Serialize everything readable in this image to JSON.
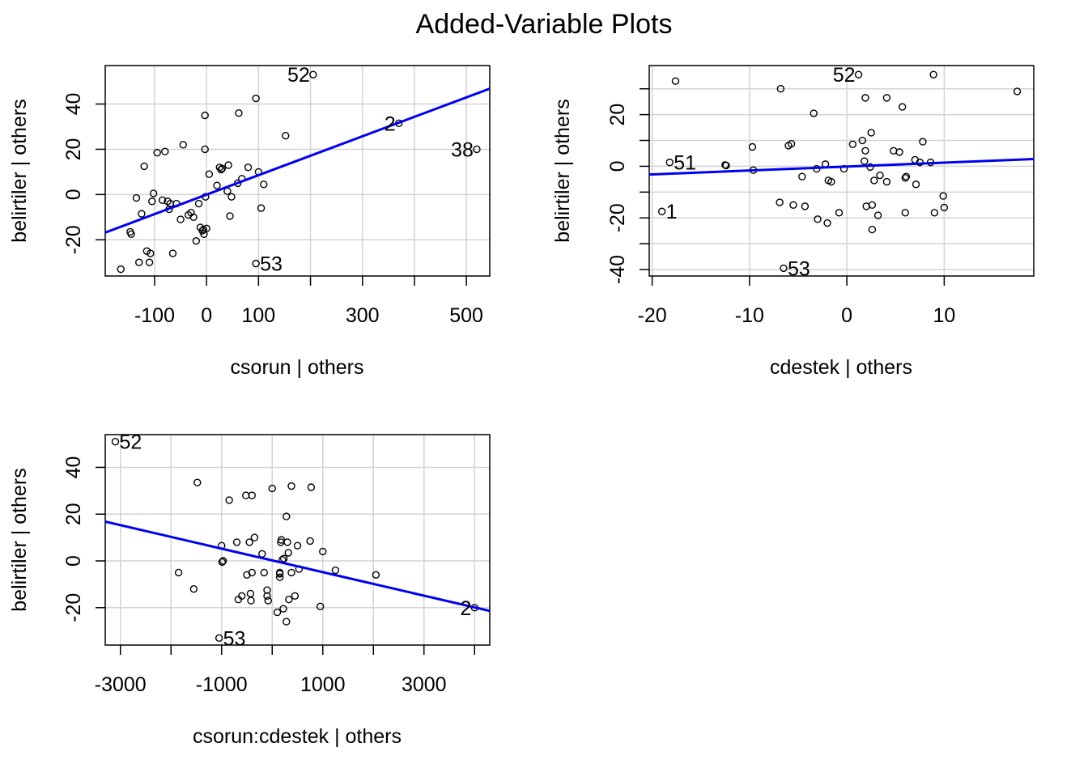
{
  "title": "Added-Variable Plots",
  "colors": {
    "fit_line": "#0000ee",
    "grid": "#d3d3d3",
    "points": "#000000",
    "frame": "#000000"
  },
  "chart_data": [
    {
      "type": "scatter",
      "xlabel": "csorun | others",
      "ylabel": "belirtiler  | others",
      "xlim": [
        -195,
        545
      ],
      "ylim": [
        -36,
        57
      ],
      "xticks": [
        -100,
        0,
        100,
        200,
        300,
        400,
        500
      ],
      "xtick_labels": [
        "-100",
        "0",
        "100",
        "",
        "300",
        "",
        "500"
      ],
      "yticks": [
        -20,
        0,
        20,
        40
      ],
      "yticks_labeled": [
        -20,
        0,
        20,
        40
      ],
      "fit": {
        "x": [
          -195,
          545
        ],
        "y": [
          -16.8,
          46.8
        ]
      },
      "points": [
        [
          -165,
          -33
        ],
        [
          -145,
          -17.5
        ],
        [
          -147,
          -16.5
        ],
        [
          -135,
          -1.5
        ],
        [
          -130,
          -30
        ],
        [
          -125,
          -8.5
        ],
        [
          -120,
          12.5
        ],
        [
          -115,
          -25
        ],
        [
          -110,
          -30
        ],
        [
          -108,
          -26
        ],
        [
          -102,
          0.5
        ],
        [
          -105,
          -3
        ],
        [
          -95,
          18.5
        ],
        [
          -85,
          -2.5
        ],
        [
          -75,
          -3
        ],
        [
          -72,
          -6.5
        ],
        [
          -70,
          -4
        ],
        [
          -65,
          -26
        ],
        [
          -58,
          -4
        ],
        [
          -50,
          -11
        ],
        [
          -45,
          22
        ],
        [
          -80,
          19
        ],
        [
          -35,
          -9
        ],
        [
          -30,
          -8
        ],
        [
          -25,
          -10
        ],
        [
          -20,
          -20.5
        ],
        [
          -15,
          -4
        ],
        [
          -12,
          -14.5
        ],
        [
          -8,
          -16
        ],
        [
          -5,
          -17.5
        ],
        [
          -6,
          -15.5
        ],
        [
          -3,
          20
        ],
        [
          -2,
          -1
        ],
        [
          -3,
          35
        ],
        [
          0,
          -15
        ],
        [
          5,
          9
        ],
        [
          20,
          4
        ],
        [
          25,
          12
        ],
        [
          28,
          11
        ],
        [
          30,
          11.5
        ],
        [
          40,
          1.5
        ],
        [
          42,
          13
        ],
        [
          45,
          -9.5
        ],
        [
          48,
          -1
        ],
        [
          60,
          5
        ],
        [
          62,
          36
        ],
        [
          68,
          7
        ],
        [
          80,
          12
        ],
        [
          95,
          42.5
        ],
        [
          100,
          10
        ],
        [
          105,
          -6
        ],
        [
          110,
          4.5
        ],
        [
          95,
          -30.5
        ],
        [
          152,
          26
        ],
        [
          205,
          53
        ],
        [
          370,
          31.5
        ],
        [
          520,
          20
        ]
      ],
      "labels": [
        {
          "x": 205,
          "y": 53,
          "text": "52",
          "side": "left"
        },
        {
          "x": 370,
          "y": 31.5,
          "text": "2",
          "side": "left"
        },
        {
          "x": 520,
          "y": 20,
          "text": "38",
          "side": "left"
        },
        {
          "x": 95,
          "y": -30.5,
          "text": "53",
          "side": "right"
        }
      ]
    },
    {
      "type": "scatter",
      "xlabel": "cdestek | others",
      "ylabel": "belirtiler  | others",
      "xlim": [
        -20.3,
        19.2
      ],
      "ylim": [
        -42.5,
        39
      ],
      "xticks": [
        -20,
        -10,
        0,
        10
      ],
      "xtick_labels": [
        "-20",
        "-10",
        "0",
        "10"
      ],
      "yticks": [
        -40,
        -30,
        -20,
        -10,
        0,
        10,
        20,
        30
      ],
      "yticks_labeled": [
        -40,
        -20,
        0,
        20
      ],
      "fit": {
        "x": [
          -20.3,
          19.2
        ],
        "y": [
          -3.2,
          2.8
        ]
      },
      "points": [
        [
          -19,
          -17.5
        ],
        [
          -18.2,
          1.5
        ],
        [
          -17.6,
          33
        ],
        [
          -12.5,
          0.5
        ],
        [
          -12.4,
          0.3
        ],
        [
          -9.7,
          7.5
        ],
        [
          -9.6,
          -1.5
        ],
        [
          -6.8,
          30
        ],
        [
          -6.9,
          -14
        ],
        [
          -6.5,
          -39.5
        ],
        [
          -6.0,
          8
        ],
        [
          -5.7,
          8.7
        ],
        [
          -5.5,
          -15
        ],
        [
          -4.6,
          -4
        ],
        [
          -4.3,
          -15.5
        ],
        [
          -3.4,
          20.5
        ],
        [
          -3.1,
          -1
        ],
        [
          -3.0,
          -20.5
        ],
        [
          -2.2,
          0.8
        ],
        [
          -2.0,
          -22
        ],
        [
          -1.9,
          -5.5
        ],
        [
          -1.6,
          -6
        ],
        [
          -0.8,
          -18
        ],
        [
          -0.3,
          -1
        ],
        [
          0.6,
          8.5
        ],
        [
          1.2,
          35.5
        ],
        [
          1.6,
          10
        ],
        [
          1.8,
          2
        ],
        [
          1.9,
          6
        ],
        [
          1.9,
          26.5
        ],
        [
          2.0,
          -15.5
        ],
        [
          2.4,
          -0.3
        ],
        [
          2.5,
          13
        ],
        [
          2.6,
          -15
        ],
        [
          2.6,
          -24.5
        ],
        [
          2.8,
          -5.5
        ],
        [
          3.2,
          -19
        ],
        [
          3.4,
          -3.5
        ],
        [
          4.1,
          26.5
        ],
        [
          4.1,
          -6
        ],
        [
          4.8,
          6
        ],
        [
          5.4,
          5.5
        ],
        [
          5.7,
          23
        ],
        [
          6.0,
          -18
        ],
        [
          6.0,
          -4.5
        ],
        [
          6.1,
          -4
        ],
        [
          7.0,
          2.5
        ],
        [
          7.1,
          -7
        ],
        [
          7.5,
          1.5
        ],
        [
          7.8,
          9.5
        ],
        [
          8.6,
          1.5
        ],
        [
          8.9,
          35.5
        ],
        [
          9.0,
          -18
        ],
        [
          9.9,
          -11.5
        ],
        [
          10.0,
          -16
        ],
        [
          17.5,
          29
        ]
      ],
      "labels": [
        {
          "x": 1.2,
          "y": 35.5,
          "text": "52",
          "side": "left"
        },
        {
          "x": -18.2,
          "y": 1.5,
          "text": "51",
          "side": "right"
        },
        {
          "x": -19,
          "y": -17.5,
          "text": "1",
          "side": "right"
        },
        {
          "x": -6.5,
          "y": -39.5,
          "text": "53",
          "side": "right"
        }
      ]
    },
    {
      "type": "scatter",
      "xlabel": "csorun:cdestek | others",
      "ylabel": "belirtiler  | others",
      "xlim": [
        -3300,
        4300
      ],
      "ylim": [
        -36,
        54
      ],
      "xticks": [
        -3000,
        -2000,
        -1000,
        0,
        1000,
        2000,
        3000,
        4000
      ],
      "xtick_labels": [
        "-3000",
        "",
        "-1000",
        "",
        "1000",
        "",
        "3000",
        ""
      ],
      "yticks": [
        -20,
        0,
        20,
        40
      ],
      "yticks_labeled": [
        -20,
        0,
        20,
        40
      ],
      "fit": {
        "x": [
          -3300,
          4300
        ],
        "y": [
          16.8,
          -21.4
        ]
      },
      "points": [
        [
          -3100,
          51
        ],
        [
          -1480,
          33.5
        ],
        [
          -1850,
          -5
        ],
        [
          -1550,
          -12
        ],
        [
          -1050,
          -33
        ],
        [
          -1000,
          6.5
        ],
        [
          -970,
          0
        ],
        [
          -990,
          -0.5
        ],
        [
          -850,
          26
        ],
        [
          -700,
          8
        ],
        [
          -670,
          -16.5
        ],
        [
          -600,
          -15
        ],
        [
          -520,
          28
        ],
        [
          -500,
          -6
        ],
        [
          -450,
          8
        ],
        [
          -430,
          -14
        ],
        [
          -420,
          -17
        ],
        [
          -400,
          28
        ],
        [
          -400,
          -5
        ],
        [
          -350,
          10
        ],
        [
          -200,
          3
        ],
        [
          -160,
          -5
        ],
        [
          -100,
          -12.5
        ],
        [
          -100,
          -15
        ],
        [
          -80,
          -17
        ],
        [
          0,
          31
        ],
        [
          100,
          -22
        ],
        [
          150,
          -5
        ],
        [
          150,
          -5.5
        ],
        [
          150,
          -7
        ],
        [
          170,
          8
        ],
        [
          180,
          9
        ],
        [
          200,
          0.5
        ],
        [
          220,
          -20.5
        ],
        [
          230,
          1
        ],
        [
          280,
          19
        ],
        [
          280,
          -26
        ],
        [
          300,
          8
        ],
        [
          320,
          3.5
        ],
        [
          330,
          -16.5
        ],
        [
          380,
          32
        ],
        [
          380,
          -5
        ],
        [
          450,
          -15
        ],
        [
          500,
          6.5
        ],
        [
          530,
          -3.5
        ],
        [
          750,
          8.5
        ],
        [
          770,
          31.5
        ],
        [
          950,
          -19.5
        ],
        [
          1000,
          4
        ],
        [
          1250,
          -4
        ],
        [
          2050,
          -6
        ],
        [
          4000,
          -20
        ]
      ],
      "labels": [
        {
          "x": -3100,
          "y": 51,
          "text": "52",
          "side": "right"
        },
        {
          "x": 4000,
          "y": -20,
          "text": "2",
          "side": "left"
        },
        {
          "x": -1050,
          "y": -33,
          "text": "53",
          "side": "right"
        }
      ]
    }
  ]
}
